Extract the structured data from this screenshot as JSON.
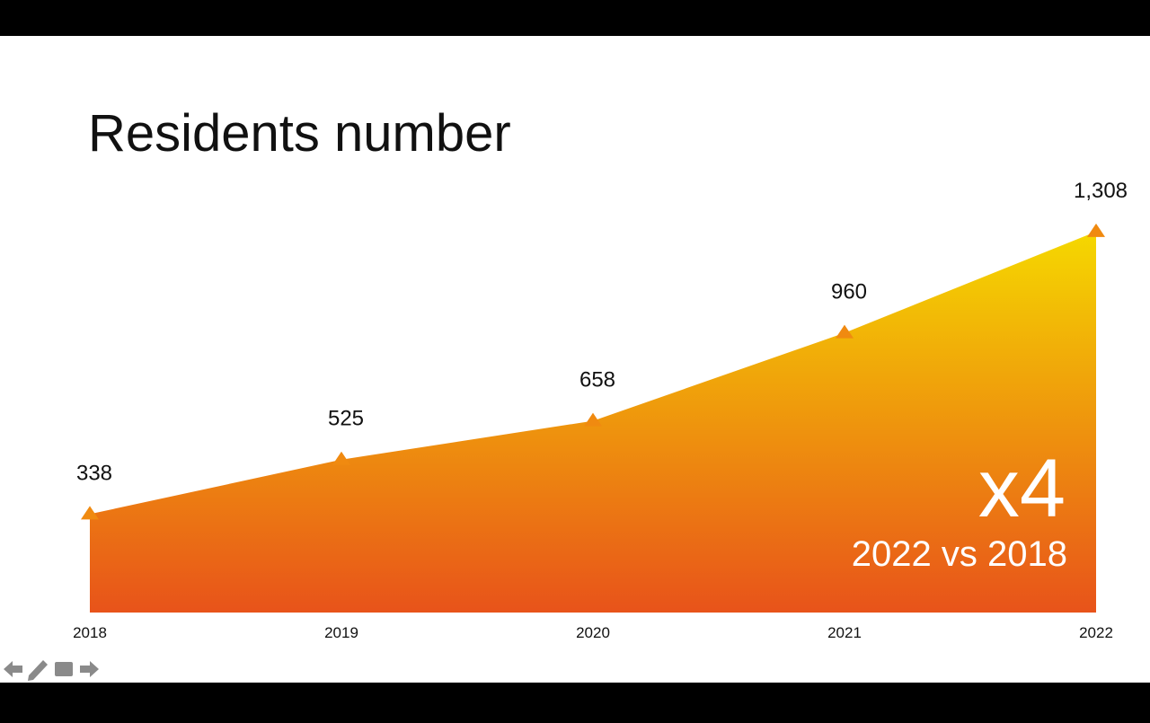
{
  "chart_data": {
    "type": "area",
    "title": "Residents number",
    "categories": [
      "2018",
      "2019",
      "2020",
      "2021",
      "2022"
    ],
    "values": [
      338,
      525,
      658,
      960,
      1308
    ],
    "value_labels": [
      "338",
      "525",
      "658",
      "960",
      "1,308"
    ],
    "color_top": "#f5d800",
    "color_bottom": "#e8531a",
    "marker_color": "#f08a10",
    "annotations": [
      "x4",
      "2022 vs 2018"
    ]
  }
}
